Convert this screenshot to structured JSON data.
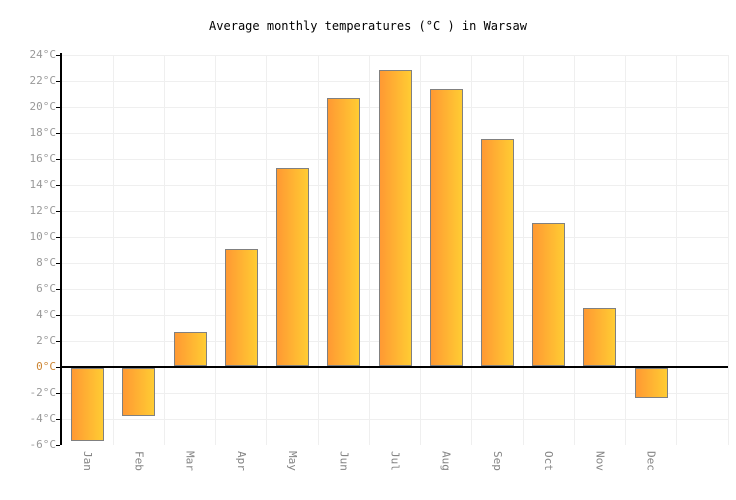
{
  "chart_data": {
    "type": "bar",
    "title": "Average monthly temperatures (°C ) in Warsaw",
    "categories": [
      "Jan",
      "Feb",
      "Mar",
      "Apr",
      "May",
      "Jun",
      "Jul",
      "Aug",
      "Sep",
      "Oct",
      "Nov",
      "Dec"
    ],
    "values": [
      -5.6,
      -3.7,
      2.6,
      9.0,
      15.2,
      20.6,
      22.8,
      21.3,
      17.5,
      11.0,
      4.5,
      -2.3
    ],
    "xlabel": "",
    "ylabel": "",
    "ylim": [
      -6,
      24
    ],
    "ytick_step": 2,
    "ytick_suffix": "°C",
    "grid": true,
    "legend_position": "none",
    "extra_right_slots": 1,
    "colors": {
      "background": "#ffffff",
      "title_text": "#000000",
      "bar_gradient_left": "#ff9933",
      "bar_gradient_right": "#ffcc33",
      "bar_border": "#808080",
      "gridline": "#efefef",
      "axis_line": "#000000",
      "zero_line": "#000000",
      "ytick_label": "#999999",
      "zero_tick_label": "#cc8533",
      "month_label": "#858585"
    }
  }
}
